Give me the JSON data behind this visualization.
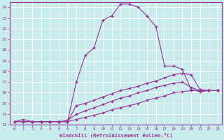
{
  "xlabel": "Windchill (Refroidissement éolien,°C)",
  "bg_color": "#c8ecec",
  "line_color": "#993399",
  "grid_color": "#b0d8d8",
  "xlim": [
    -0.5,
    23.5
  ],
  "ylim": [
    13,
    24.5
  ],
  "xticks": [
    0,
    1,
    2,
    3,
    4,
    5,
    6,
    7,
    8,
    9,
    10,
    11,
    12,
    13,
    14,
    15,
    16,
    17,
    18,
    19,
    20,
    21,
    22,
    23
  ],
  "yticks": [
    13,
    14,
    15,
    16,
    17,
    18,
    19,
    20,
    21,
    22,
    23,
    24
  ],
  "curve1_x": [
    0,
    1,
    2,
    3,
    4,
    5,
    6,
    7,
    8,
    9,
    10,
    11,
    12,
    13,
    14,
    15,
    16,
    17,
    18,
    19,
    20,
    21,
    22,
    23
  ],
  "curve1_y": [
    13.3,
    13.5,
    13.3,
    13.3,
    13.3,
    13.3,
    13.3,
    17.0,
    19.5,
    20.2,
    22.8,
    23.2,
    24.3,
    24.3,
    24.0,
    23.2,
    22.2,
    18.5,
    18.5,
    18.2,
    16.3,
    16.1,
    16.2,
    16.2
  ],
  "curve2_x": [
    1,
    2,
    3,
    4,
    5,
    6,
    7,
    8,
    9,
    10,
    11,
    12,
    13,
    14,
    15,
    16,
    17,
    18,
    19,
    20,
    21,
    22,
    23
  ],
  "curve2_y": [
    13.3,
    13.3,
    13.3,
    13.3,
    13.3,
    13.3,
    14.8,
    15.0,
    15.3,
    15.6,
    15.9,
    16.2,
    16.4,
    16.6,
    16.9,
    17.1,
    17.4,
    17.7,
    17.8,
    17.7,
    16.3,
    16.2,
    16.2
  ],
  "curve3_x": [
    0,
    1,
    2,
    3,
    4,
    5,
    6,
    7,
    8,
    9,
    10,
    11,
    12,
    13,
    14,
    15,
    16,
    17,
    18,
    19,
    20,
    21,
    22,
    23
  ],
  "curve3_y": [
    13.3,
    13.3,
    13.3,
    13.3,
    13.3,
    13.3,
    13.4,
    14.0,
    14.3,
    14.6,
    14.9,
    15.2,
    15.5,
    15.7,
    16.0,
    16.2,
    16.5,
    16.7,
    16.9,
    17.0,
    16.5,
    16.2,
    16.2,
    16.2
  ],
  "curve4_x": [
    0,
    1,
    2,
    3,
    4,
    5,
    6,
    7,
    8,
    9,
    10,
    11,
    12,
    13,
    14,
    15,
    16,
    17,
    18,
    19,
    20,
    21,
    22,
    23
  ],
  "curve4_y": [
    13.3,
    13.3,
    13.3,
    13.3,
    13.3,
    13.3,
    13.3,
    13.5,
    13.7,
    13.9,
    14.1,
    14.4,
    14.6,
    14.8,
    15.0,
    15.3,
    15.5,
    15.7,
    16.0,
    16.1,
    16.2,
    16.2,
    16.2,
    16.2
  ]
}
